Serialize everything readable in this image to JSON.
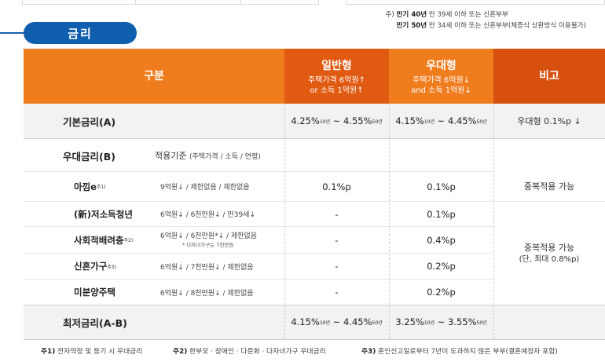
{
  "top_notes": {
    "prefix": "주)",
    "line1_bold": "만기 40년",
    "line1_rest": "만 39세 이하 또는 신혼부부",
    "line2_bold": "만기 50년",
    "line2_rest": "만 34세 이하 또는 신혼부부(체증식 상환방식 이용불가)"
  },
  "section_tag": "금리",
  "header": {
    "col0": "구분",
    "col1_title": "일반형",
    "col1_sub1": "주택가격 6억원↑",
    "col1_sub2": "or 소득 1억원↑",
    "col2_title": "우대형",
    "col2_sub1": "주택가격 6억원↓",
    "col2_sub2": "and 소득 1억원↓",
    "col3": "비고"
  },
  "base_rate": {
    "label": "기본금리(A)",
    "general": {
      "a": "4.25%",
      "a_sup": "10년",
      "sep": " ~ ",
      "b": "4.55%",
      "b_sup": "50년"
    },
    "preferred": {
      "a": "4.15%",
      "a_sup": "10년",
      "sep": " ~ ",
      "b": "4.45%",
      "b_sup": "50년"
    },
    "note": "우대형 0.1%p ↓"
  },
  "preferential": {
    "label": "우대금리(B)",
    "criteria_title": "적용기준",
    "criteria_paren": "(주택가격 / 소득 / 연령)",
    "rows": [
      {
        "name": "아낌e",
        "sup": "주1)",
        "criteria": "9억원↓ / 제한없음 / 제한없음",
        "general": "0.1%p",
        "preferred": "0.1%p"
      },
      {
        "name": "(新)저소득청년",
        "sup": "",
        "criteria": "6억원↓ / 6천만원↓ / 만39세↓",
        "general": "-",
        "preferred": "0.1%p"
      },
      {
        "name": "사회적배려층",
        "sup": "주2)",
        "criteria": "6억원↓ / 6천만원*↓ / 제한없음",
        "criteria_note": "* 다자녀가구는 7천만원",
        "general": "-",
        "preferred": "0.4%p"
      },
      {
        "name": "신혼가구",
        "sup": "주3)",
        "criteria": "6억원↓ / 7천만원↓ / 제한없음",
        "general": "-",
        "preferred": "0.2%p"
      },
      {
        "name": "미분양주택",
        "sup": "",
        "criteria": "6억원↓ / 8천만원↓ / 제한없음",
        "general": "-",
        "preferred": "0.2%p"
      }
    ],
    "note_a": "중복적용 가능",
    "note_b1": "중복적용 가능",
    "note_b2": "(단, 최대 0.8%p)"
  },
  "min_rate": {
    "label": "최저금리(A-B)",
    "general": {
      "a": "4.15%",
      "a_sup": "10년",
      "sep": " ~ ",
      "b": "4.45%",
      "b_sup": "50년"
    },
    "preferred": {
      "a": "3.25%",
      "a_sup": "10년",
      "sep": " ~ ",
      "b": "3.55%",
      "b_sup": "50년"
    }
  },
  "footnotes": [
    {
      "key": "주1)",
      "text": "전자약정 및 등기 시 우대금리"
    },
    {
      "key": "주2)",
      "text": "한부모 · 장애인 · 다문화 · 다자녀가구 우대금리"
    },
    {
      "key": "주3)",
      "text": "혼인신고일로부터 7년이 도과하지 않은 부부(결혼예정자 포함)"
    }
  ],
  "colors": {
    "header_orange": "#ef7d1e",
    "header_dark_orange": "#e15a12",
    "header_note": "#d8500e",
    "tag_blue": "#0f5fae",
    "row_gray": "#f2f2f2"
  }
}
